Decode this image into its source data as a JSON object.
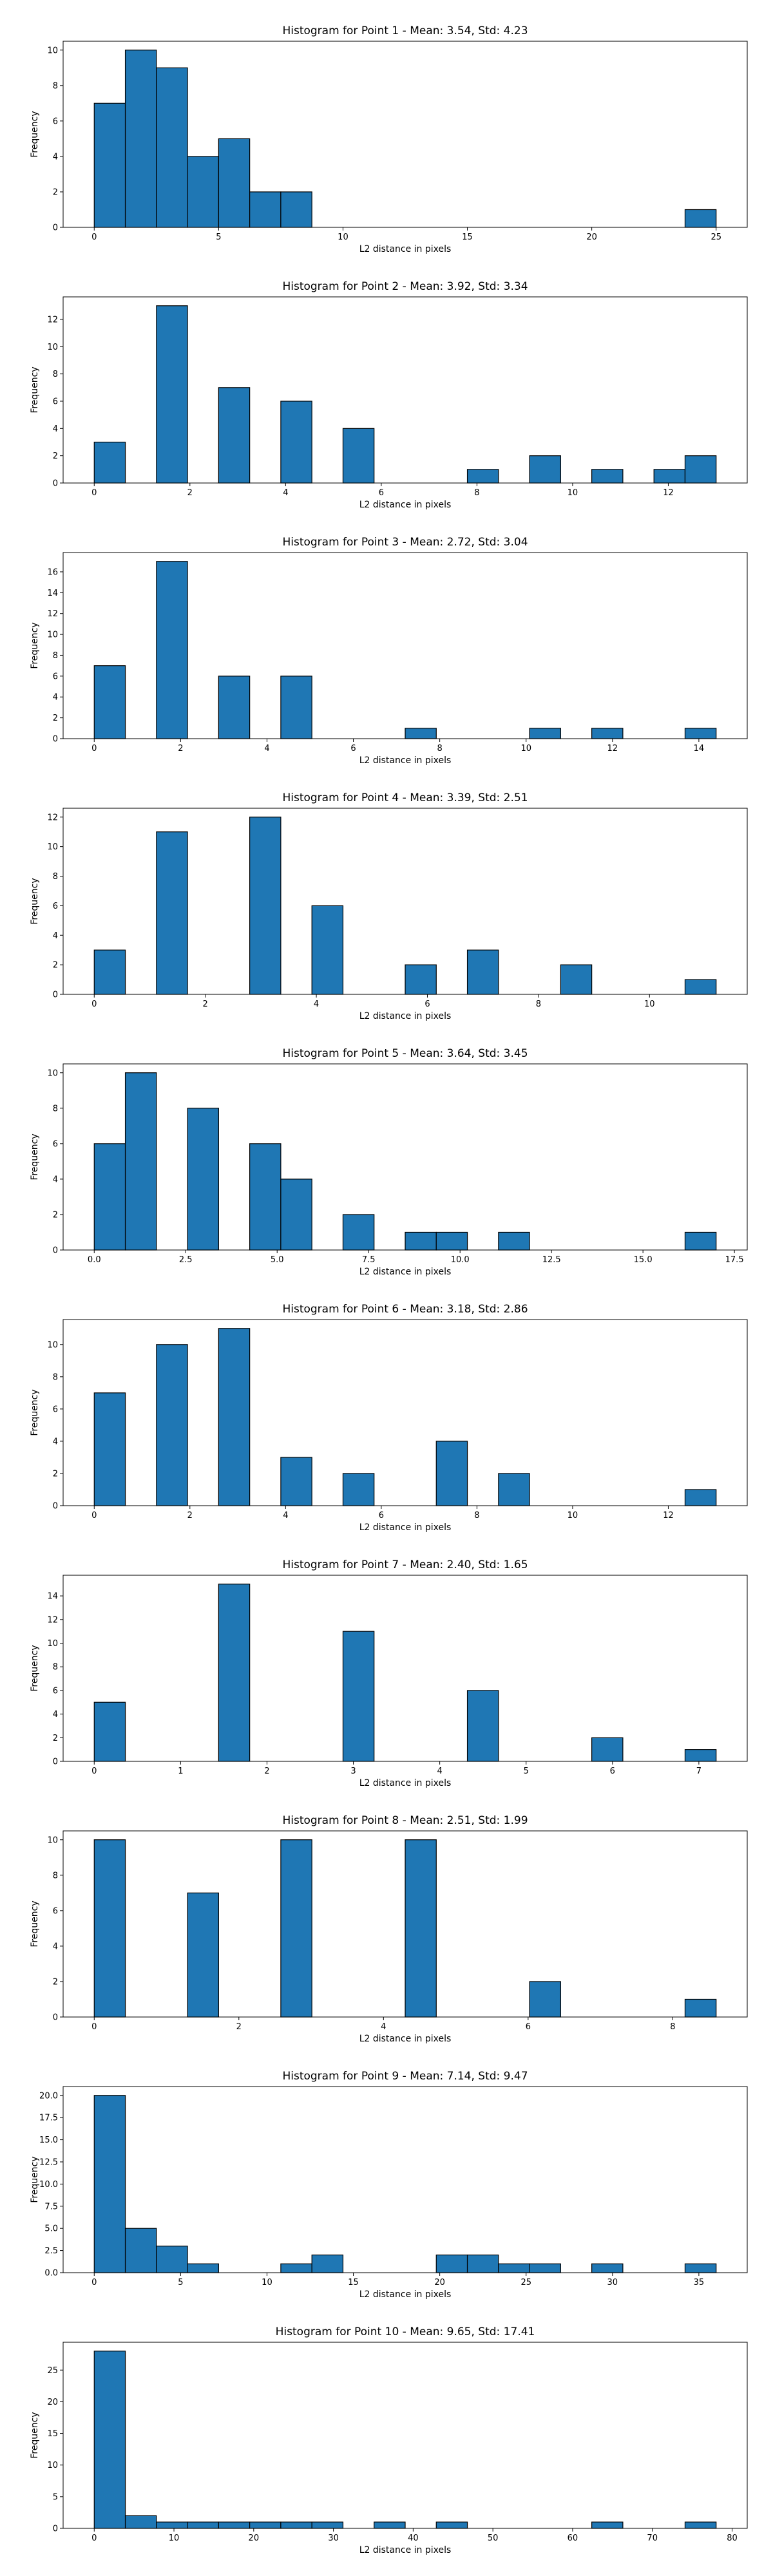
{
  "bar_color": "#1f77b4",
  "edge_color": "#000000",
  "chart_data": [
    {
      "type": "bar",
      "title": "Histogram for Point 1 - Mean: 3.54, Std: 4.23",
      "xlabel": "L2 distance in pixels",
      "ylabel": "Frequency",
      "bins": {
        "start": 0,
        "width": 1.25,
        "counts": [
          7,
          10,
          9,
          4,
          5,
          2,
          2,
          0,
          0,
          0,
          0,
          0,
          0,
          0,
          0,
          0,
          0,
          0,
          0,
          1
        ]
      },
      "xlim": [
        -1.25,
        26.25
      ],
      "ylim": [
        0,
        10.5
      ],
      "xticks": [
        0,
        5,
        10,
        15,
        20,
        25
      ],
      "xtick_labels": [
        "0",
        "5",
        "10",
        "15",
        "20",
        "25"
      ],
      "yticks": [
        0,
        2,
        4,
        6,
        8,
        10
      ],
      "ytick_labels": [
        "0",
        "2",
        "4",
        "6",
        "8",
        "10"
      ],
      "grid": false
    },
    {
      "type": "bar",
      "title": "Histogram for Point 2 - Mean: 3.92, Std: 3.34",
      "xlabel": "L2 distance in pixels",
      "ylabel": "Frequency",
      "bins": {
        "start": 0,
        "width": 0.65,
        "counts": [
          3,
          0,
          13,
          0,
          7,
          0,
          6,
          0,
          4,
          0,
          0,
          0,
          1,
          0,
          2,
          0,
          1,
          0,
          1,
          2
        ]
      },
      "xlim": [
        -0.65,
        13.65
      ],
      "ylim": [
        0,
        13.65
      ],
      "xticks": [
        0,
        2,
        4,
        6,
        8,
        10,
        12
      ],
      "xtick_labels": [
        "0",
        "2",
        "4",
        "6",
        "8",
        "10",
        "12"
      ],
      "yticks": [
        0,
        2,
        4,
        6,
        8,
        10,
        12
      ],
      "ytick_labels": [
        "0",
        "2",
        "4",
        "6",
        "8",
        "10",
        "12"
      ],
      "grid": false
    },
    {
      "type": "bar",
      "title": "Histogram for Point 3 - Mean: 2.72, Std: 3.04",
      "xlabel": "L2 distance in pixels",
      "ylabel": "Frequency",
      "bins": {
        "start": 0,
        "width": 0.72,
        "counts": [
          7,
          0,
          17,
          0,
          6,
          0,
          6,
          0,
          0,
          0,
          1,
          0,
          0,
          0,
          1,
          0,
          1,
          0,
          0,
          1
        ]
      },
      "xlim": [
        -0.72,
        15.12
      ],
      "ylim": [
        0,
        17.85
      ],
      "xticks": [
        0,
        2,
        4,
        6,
        8,
        10,
        12,
        14
      ],
      "xtick_labels": [
        "0",
        "2",
        "4",
        "6",
        "8",
        "10",
        "12",
        "14"
      ],
      "yticks": [
        0,
        2,
        4,
        6,
        8,
        10,
        12,
        14,
        16
      ],
      "ytick_labels": [
        "0",
        "2",
        "4",
        "6",
        "8",
        "10",
        "12",
        "14",
        "16"
      ],
      "grid": false
    },
    {
      "type": "bar",
      "title": "Histogram for Point 4 - Mean: 3.39, Std: 2.51",
      "xlabel": "L2 distance in pixels",
      "ylabel": "Frequency",
      "bins": {
        "start": 0,
        "width": 0.56,
        "counts": [
          3,
          0,
          11,
          0,
          0,
          12,
          0,
          6,
          0,
          0,
          2,
          0,
          3,
          0,
          0,
          2,
          0,
          0,
          0,
          1
        ]
      },
      "xlim": [
        -0.56,
        11.76
      ],
      "ylim": [
        0,
        12.6
      ],
      "xticks": [
        0,
        2,
        4,
        6,
        8,
        10
      ],
      "xtick_labels": [
        "0",
        "2",
        "4",
        "6",
        "8",
        "10"
      ],
      "yticks": [
        0,
        2,
        4,
        6,
        8,
        10,
        12
      ],
      "ytick_labels": [
        "0",
        "2",
        "4",
        "6",
        "8",
        "10",
        "12"
      ],
      "grid": false
    },
    {
      "type": "bar",
      "title": "Histogram for Point 5 - Mean: 3.64, Std: 3.45",
      "xlabel": "L2 distance in pixels",
      "ylabel": "Frequency",
      "bins": {
        "start": 0,
        "width": 0.85,
        "counts": [
          6,
          10,
          0,
          8,
          0,
          6,
          4,
          0,
          2,
          0,
          1,
          1,
          0,
          1,
          0,
          0,
          0,
          0,
          0,
          1
        ]
      },
      "xlim": [
        -0.85,
        17.85
      ],
      "ylim": [
        0,
        10.5
      ],
      "xticks": [
        0,
        2.5,
        5,
        7.5,
        10,
        12.5,
        15,
        17.5
      ],
      "xtick_labels": [
        "0.0",
        "2.5",
        "5.0",
        "7.5",
        "10.0",
        "12.5",
        "15.0",
        "17.5"
      ],
      "yticks": [
        0,
        2,
        4,
        6,
        8,
        10
      ],
      "ytick_labels": [
        "0",
        "2",
        "4",
        "6",
        "8",
        "10"
      ],
      "grid": false
    },
    {
      "type": "bar",
      "title": "Histogram for Point 6 - Mean: 3.18, Std: 2.86",
      "xlabel": "L2 distance in pixels",
      "ylabel": "Frequency",
      "bins": {
        "start": 0,
        "width": 0.65,
        "counts": [
          7,
          0,
          10,
          0,
          11,
          0,
          3,
          0,
          2,
          0,
          0,
          4,
          0,
          2,
          0,
          0,
          0,
          0,
          0,
          1
        ]
      },
      "xlim": [
        -0.65,
        13.65
      ],
      "ylim": [
        0,
        11.55
      ],
      "xticks": [
        0,
        2,
        4,
        6,
        8,
        10,
        12
      ],
      "xtick_labels": [
        "0",
        "2",
        "4",
        "6",
        "8",
        "10",
        "12"
      ],
      "yticks": [
        0,
        2,
        4,
        6,
        8,
        10
      ],
      "ytick_labels": [
        "0",
        "2",
        "4",
        "6",
        "8",
        "10"
      ],
      "grid": false
    },
    {
      "type": "bar",
      "title": "Histogram for Point 7 - Mean: 2.40, Std: 1.65",
      "xlabel": "L2 distance in pixels",
      "ylabel": "Frequency",
      "bins": {
        "start": 0,
        "width": 0.36,
        "counts": [
          5,
          0,
          0,
          0,
          15,
          0,
          0,
          0,
          11,
          0,
          0,
          0,
          6,
          0,
          0,
          0,
          2,
          0,
          0,
          1
        ]
      },
      "xlim": [
        -0.36,
        7.56
      ],
      "ylim": [
        0,
        15.75
      ],
      "xticks": [
        0,
        1,
        2,
        3,
        4,
        5,
        6,
        7
      ],
      "xtick_labels": [
        "0",
        "1",
        "2",
        "3",
        "4",
        "5",
        "6",
        "7"
      ],
      "yticks": [
        0,
        2,
        4,
        6,
        8,
        10,
        12,
        14
      ],
      "ytick_labels": [
        "0",
        "2",
        "4",
        "6",
        "8",
        "10",
        "12",
        "14"
      ],
      "grid": false
    },
    {
      "type": "bar",
      "title": "Histogram for Point 8 - Mean: 2.51, Std: 1.99",
      "xlabel": "L2 distance in pixels",
      "ylabel": "Frequency",
      "bins": {
        "start": 0,
        "width": 0.43,
        "counts": [
          10,
          0,
          0,
          7,
          0,
          0,
          10,
          0,
          0,
          0,
          10,
          0,
          0,
          0,
          2,
          0,
          0,
          0,
          0,
          1
        ]
      },
      "xlim": [
        -0.43,
        9.03
      ],
      "ylim": [
        0,
        10.5
      ],
      "xticks": [
        0,
        2,
        4,
        6,
        8
      ],
      "xtick_labels": [
        "0",
        "2",
        "4",
        "6",
        "8"
      ],
      "yticks": [
        0,
        2,
        4,
        6,
        8,
        10
      ],
      "ytick_labels": [
        "0",
        "2",
        "4",
        "6",
        "8",
        "10"
      ],
      "grid": false
    },
    {
      "type": "bar",
      "title": "Histogram for Point 9 - Mean: 7.14, Std: 9.47",
      "xlabel": "L2 distance in pixels",
      "ylabel": "Frequency",
      "bins": {
        "start": 0,
        "width": 1.8,
        "counts": [
          20,
          5,
          3,
          1,
          0,
          0,
          1,
          2,
          0,
          0,
          0,
          2,
          2,
          1,
          1,
          0,
          1,
          0,
          0,
          1
        ]
      },
      "xlim": [
        -1.8,
        37.8
      ],
      "ylim": [
        0,
        21
      ],
      "xticks": [
        0,
        5,
        10,
        15,
        20,
        25,
        30,
        35
      ],
      "xtick_labels": [
        "0",
        "5",
        "10",
        "15",
        "20",
        "25",
        "30",
        "35"
      ],
      "yticks": [
        0,
        2.5,
        5,
        7.5,
        10,
        12.5,
        15,
        17.5,
        20
      ],
      "ytick_labels": [
        "0.0",
        "2.5",
        "5.0",
        "7.5",
        "10.0",
        "12.5",
        "15.0",
        "17.5",
        "20.0"
      ],
      "grid": false
    },
    {
      "type": "bar",
      "title": "Histogram for Point 10 - Mean: 9.65, Std: 17.41",
      "xlabel": "L2 distance in pixels",
      "ylabel": "Frequency",
      "bins": {
        "start": 0,
        "width": 3.9,
        "counts": [
          28,
          2,
          1,
          1,
          1,
          1,
          1,
          1,
          0,
          1,
          0,
          1,
          0,
          0,
          0,
          0,
          1,
          0,
          0,
          1
        ]
      },
      "xlim": [
        -3.9,
        81.9
      ],
      "ylim": [
        0,
        29.4
      ],
      "xticks": [
        0,
        10,
        20,
        30,
        40,
        50,
        60,
        70,
        80
      ],
      "xtick_labels": [
        "0",
        "10",
        "20",
        "30",
        "40",
        "50",
        "60",
        "70",
        "80"
      ],
      "yticks": [
        0,
        5,
        10,
        15,
        20,
        25
      ],
      "ytick_labels": [
        "0",
        "5",
        "10",
        "15",
        "20",
        "25"
      ],
      "grid": false
    }
  ]
}
